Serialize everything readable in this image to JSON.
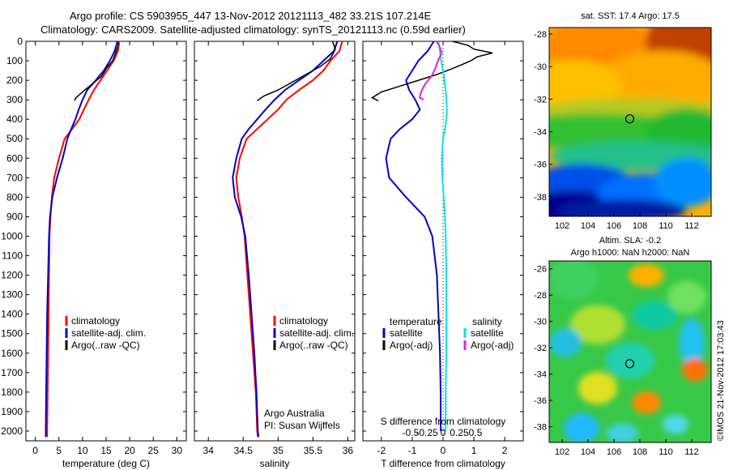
{
  "titles": {
    "line1": "Argo profile: CS 5903955_447 13-Nov-2012 20121113_482 33.21S 107.214E",
    "line2": "Climatology: CARS2009. Satellite-adjusted climatology: synTS_20121113.nc (0.59d earlier)"
  },
  "colors": {
    "climatology": "#ff0000",
    "satellite": "#0000cc",
    "argo": "#000000",
    "satellite_salinity": "#00e5e5",
    "argo_salinity": "#e020e0"
  },
  "chart_data": [
    {
      "type": "line",
      "xlabel": "temperature (deg C)",
      "xlim": [
        -2,
        32
      ],
      "xticks": [
        "0",
        "5",
        "10",
        "15",
        "20",
        "25",
        "30"
      ],
      "ylim": [
        0,
        2050
      ],
      "yticks": [
        "0",
        "100",
        "200",
        "300",
        "400",
        "500",
        "600",
        "700",
        "800",
        "900",
        "1000",
        "1100",
        "1200",
        "1300",
        "1400",
        "1500",
        "1600",
        "1700",
        "1800",
        "1900",
        "2000"
      ],
      "legend": [
        "climatology",
        "satellite-adj. clim.",
        "Argo(..raw -QC)"
      ],
      "legend_position": "lower-center",
      "series": [
        {
          "name": "climatology",
          "x": [
            17.8,
            17.5,
            16.6,
            15.2,
            13.8,
            12.4,
            11.3,
            10.3,
            9.3,
            7.8,
            6.2,
            5.0,
            4.0,
            3.5,
            3.2,
            3.0,
            2.9,
            2.8,
            2.7,
            2.6,
            2.5,
            2.5
          ],
          "y": [
            0,
            50,
            100,
            150,
            200,
            250,
            300,
            350,
            400,
            450,
            500,
            600,
            700,
            800,
            900,
            1000,
            1200,
            1400,
            1600,
            1800,
            2000,
            2030
          ]
        },
        {
          "name": "satellite-adj. clim.",
          "x": [
            17.4,
            16.8,
            15.8,
            14.5,
            12.8,
            11.0,
            10.0,
            9.2,
            8.5,
            7.6,
            6.8,
            5.8,
            4.6,
            3.6,
            3.1,
            2.9,
            2.7,
            2.5,
            2.4,
            2.3,
            2.2,
            2.2
          ],
          "y": [
            0,
            50,
            100,
            150,
            200,
            250,
            300,
            350,
            400,
            450,
            500,
            600,
            700,
            800,
            900,
            1000,
            1200,
            1400,
            1600,
            1800,
            2000,
            2030
          ]
        },
        {
          "name": "Argo(..raw -QC)",
          "x": [
            17.3,
            17.6,
            17.0,
            16.4,
            15.0,
            14.0,
            12.0,
            10.0,
            8.6,
            8.3
          ],
          "y": [
            0,
            20,
            60,
            100,
            140,
            180,
            220,
            260,
            290,
            305
          ]
        }
      ]
    },
    {
      "type": "line",
      "xlabel": "salinity",
      "xlim": [
        33.8,
        36.1
      ],
      "xticks": [
        "34",
        "34.5",
        "35",
        "35.5",
        "36"
      ],
      "ylim": [
        0,
        2050
      ],
      "legend": [
        "climatology",
        "satellite-adj. clim.",
        "Argo(..raw -QC)"
      ],
      "legend_position": "lower-right",
      "annotation": [
        "Argo Australia",
        "PI: Susan Wijffels"
      ],
      "series": [
        {
          "name": "climatology",
          "x": [
            35.92,
            35.88,
            35.75,
            35.65,
            35.5,
            35.3,
            35.12,
            35.0,
            34.85,
            34.7,
            34.55,
            34.45,
            34.4,
            34.43,
            34.48,
            34.52,
            34.56,
            34.6,
            34.64,
            34.68,
            34.7,
            34.71
          ],
          "y": [
            0,
            50,
            100,
            150,
            200,
            250,
            300,
            350,
            400,
            450,
            500,
            600,
            700,
            800,
            900,
            1000,
            1200,
            1400,
            1600,
            1800,
            2000,
            2030
          ]
        },
        {
          "name": "satellite-adj. clim.",
          "x": [
            35.85,
            35.8,
            35.65,
            35.5,
            35.3,
            35.1,
            34.95,
            34.82,
            34.7,
            34.58,
            34.48,
            34.4,
            34.35,
            34.38,
            34.47,
            34.53,
            34.58,
            34.62,
            34.66,
            34.69,
            34.71,
            34.72
          ],
          "y": [
            0,
            50,
            100,
            150,
            200,
            250,
            300,
            350,
            400,
            450,
            500,
            600,
            700,
            800,
            900,
            1000,
            1200,
            1400,
            1600,
            1800,
            2000,
            2030
          ]
        },
        {
          "name": "Argo(..raw -QC)",
          "x": [
            35.78,
            35.82,
            35.75,
            35.6,
            35.4,
            35.2,
            35.0,
            34.8,
            34.7
          ],
          "y": [
            0,
            40,
            90,
            130,
            170,
            210,
            250,
            280,
            305
          ]
        }
      ]
    },
    {
      "type": "line",
      "xlabel": "T difference from climatology",
      "xlabel_top": "S difference from climatology",
      "xlim": [
        -2.6,
        2.6
      ],
      "xticks": [
        "-2",
        "-1",
        "0",
        "1",
        "2"
      ],
      "xticks_s": [
        "-0.5",
        "-0.25",
        "0",
        "0.25",
        "0.5"
      ],
      "ylim": [
        0,
        2050
      ],
      "legend_left_title": "temperature",
      "legend_right_title": "salinity",
      "legend": [
        "satellite",
        "Argo(-adj)",
        "satellite",
        "Argo(-adj)"
      ],
      "legend_position": "center",
      "series": [
        {
          "name": "satellite",
          "quantity": "temperature",
          "x": [
            -0.3,
            -0.5,
            -0.8,
            -1.0,
            -1.2,
            -1.1,
            -0.9,
            -0.75,
            -1.0,
            -1.4,
            -1.7,
            -1.85,
            -1.75,
            -1.2,
            -0.6,
            -0.35,
            -0.2,
            -0.15,
            -0.1,
            -0.08,
            -0.08
          ],
          "y": [
            0,
            50,
            100,
            150,
            200,
            250,
            300,
            350,
            400,
            450,
            500,
            600,
            700,
            800,
            900,
            1000,
            1200,
            1400,
            1600,
            1800,
            2000
          ]
        },
        {
          "name": "Argo(-adj)",
          "quantity": "temperature",
          "x": [
            0.3,
            0.8,
            1.0,
            1.6,
            1.1,
            0.9,
            0.6,
            0.3,
            -0.2,
            -0.8,
            -1.4,
            -2.0,
            -2.3,
            -2.1
          ],
          "y": [
            0,
            20,
            40,
            60,
            80,
            100,
            120,
            140,
            170,
            200,
            230,
            260,
            290,
            305
          ]
        },
        {
          "name": "satellite",
          "quantity": "salinity",
          "x": [
            -0.07,
            -0.05,
            -0.03,
            0.0,
            0.02,
            0.04,
            0.05,
            0.06,
            0.05,
            0.03,
            0.0,
            -0.02,
            -0.01,
            0.01,
            0.03,
            0.04,
            0.05,
            0.05,
            0.05,
            0.04,
            0.04
          ],
          "y": [
            0,
            50,
            100,
            150,
            200,
            250,
            300,
            350,
            400,
            450,
            500,
            600,
            700,
            800,
            900,
            1000,
            1200,
            1400,
            1600,
            1800,
            2000
          ]
        },
        {
          "name": "Argo(-adj)",
          "quantity": "salinity",
          "x": [
            -0.1,
            -0.05,
            -0.02,
            -0.08,
            -0.12,
            -0.18,
            -0.28,
            -0.34,
            -0.36,
            -0.3
          ],
          "y": [
            0,
            30,
            60,
            100,
            140,
            180,
            220,
            260,
            290,
            300
          ]
        }
      ]
    },
    {
      "type": "heatmap",
      "title": "sat. SST: 17.4  Argo: 17.5",
      "xticks": [
        "102",
        "104",
        "106",
        "108",
        "110",
        "112"
      ],
      "yticks": [
        "-28",
        "-30",
        "-32",
        "-34",
        "-36",
        "-38"
      ],
      "xlim": [
        101,
        113.5
      ],
      "ylim": [
        -39.2,
        -27.6
      ],
      "marker": {
        "lon": 107.214,
        "lat": -33.21
      }
    },
    {
      "type": "heatmap",
      "title": "Altim. SLA: -0.2",
      "subtitle": "Argo h1000: NaN h2000: NaN",
      "xticks": [
        "102",
        "104",
        "106",
        "108",
        "110",
        "112"
      ],
      "yticks": [
        "-26",
        "-28",
        "-30",
        "-32",
        "-34",
        "-36",
        "-38"
      ],
      "xlim": [
        101,
        113.5
      ],
      "ylim": [
        -39.2,
        -25.4
      ],
      "marker": {
        "lon": 107.214,
        "lat": -33.21
      }
    }
  ],
  "side_stamp": "©IMOS 21-Nov-2012 17:03:43"
}
